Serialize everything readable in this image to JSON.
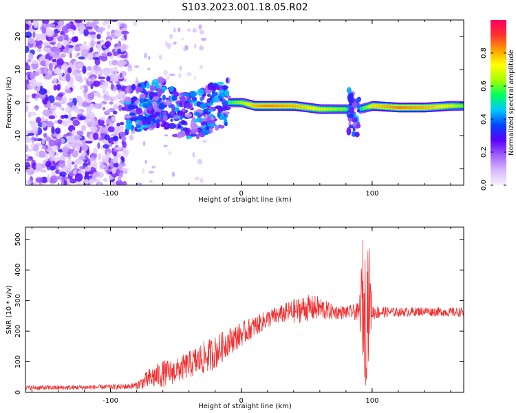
{
  "title": "S103.2023.001.18.05.R02",
  "colors": {
    "snr_line": "#f03030",
    "spectrogram_low": "#c8a8ff",
    "spectrogram_mid": "#6a1cf0",
    "colorbar": [
      "#f8f0ff",
      "#d6b8ff",
      "#a060ff",
      "#5a00ff",
      "#0044ff",
      "#00c8ff",
      "#00ff60",
      "#a8ff00",
      "#ffff00",
      "#ffa000",
      "#ff3030",
      "#ff0060"
    ]
  },
  "chart_data": [
    {
      "type": "heatmap",
      "name": "spectrogram",
      "xlabel": "Height of straight line (km)",
      "ylabel": "Frequency (Hz)",
      "xlim": [
        -165,
        170
      ],
      "ylim": [
        -25,
        25
      ],
      "xticks": [
        -100,
        0,
        100
      ],
      "yticks": [
        -20,
        -10,
        0,
        10,
        20
      ],
      "colorbar": {
        "label": "Normalized spectral amplitude",
        "range": [
          0.0,
          1.0
        ],
        "ticks": [
          "0.0",
          "0.2",
          "0.4",
          "0.6",
          "0.8"
        ],
        "tick_values": [
          0.0,
          0.2,
          0.4,
          0.6,
          0.8
        ]
      },
      "ridge": {
        "x": [
          -85,
          -70,
          -60,
          -50,
          -40,
          -30,
          -20,
          -10,
          0,
          10,
          20,
          40,
          60,
          80,
          84,
          88,
          90,
          100,
          120,
          140,
          160,
          170
        ],
        "y": [
          -2,
          -1,
          0,
          -3,
          -4,
          -3,
          -1,
          0,
          0,
          -1,
          -1,
          -1,
          -2,
          -2,
          -2,
          0,
          -2,
          -1,
          -1.5,
          -1.5,
          -1,
          -1
        ],
        "amplitude": [
          0.4,
          0.4,
          0.4,
          0.4,
          0.45,
          0.4,
          0.4,
          0.55,
          0.65,
          0.8,
          0.85,
          0.8,
          0.7,
          0.6,
          0.3,
          0.3,
          0.5,
          0.75,
          0.85,
          0.8,
          0.7,
          0.6
        ]
      }
    },
    {
      "type": "line",
      "name": "snr",
      "xlabel": "Height of straight line (km)",
      "ylabel": "SNR (10 * v/v)",
      "xlim": [
        -165,
        170
      ],
      "ylim": [
        0,
        540
      ],
      "xticks": [
        -100,
        0,
        100
      ],
      "yticks": [
        0,
        100,
        200,
        300,
        400,
        500
      ],
      "envelope": {
        "x": [
          -165,
          -140,
          -120,
          -100,
          -90,
          -80,
          -70,
          -60,
          -50,
          -40,
          -30,
          -20,
          -10,
          0,
          10,
          20,
          30,
          40,
          50,
          60,
          70,
          80,
          90,
          93,
          95,
          97,
          100,
          110,
          120,
          140,
          160,
          170
        ],
        "y": [
          15,
          15,
          16,
          18,
          18,
          22,
          45,
          60,
          70,
          90,
          110,
          130,
          165,
          190,
          215,
          240,
          255,
          265,
          275,
          275,
          262,
          262,
          262,
          300,
          240,
          320,
          262,
          262,
          262,
          265,
          262,
          262
        ],
        "noise": [
          8,
          8,
          8,
          8,
          9,
          12,
          35,
          45,
          40,
          45,
          55,
          55,
          45,
          40,
          35,
          30,
          30,
          40,
          45,
          40,
          25,
          20,
          30,
          210,
          230,
          220,
          25,
          18,
          15,
          15,
          15,
          15
        ]
      }
    }
  ]
}
